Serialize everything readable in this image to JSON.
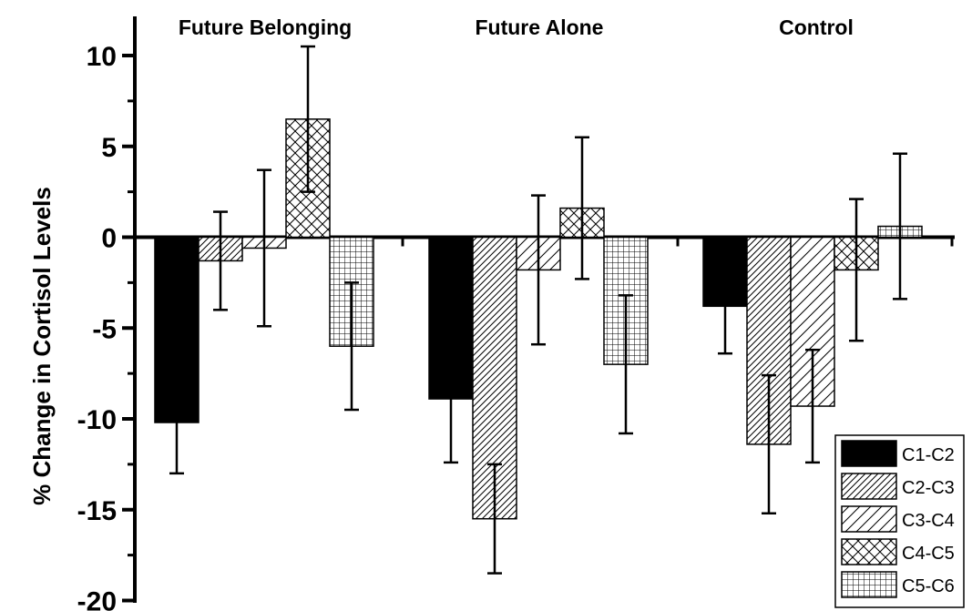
{
  "chart_data": {
    "type": "bar",
    "ylabel": "% Change in Cortisol Levels",
    "ylim": [
      -20,
      11
    ],
    "yticks": [
      10,
      5,
      0,
      -5,
      -10,
      -15,
      -20
    ],
    "categories": [
      "Future Belonging",
      "Future Alone",
      "Control"
    ],
    "series": [
      {
        "name": "C1-C2",
        "pattern": "solid",
        "values": [
          -10.2,
          -8.9,
          -3.8
        ],
        "errors": [
          2.8,
          3.5,
          2.6
        ]
      },
      {
        "name": "C2-C3",
        "pattern": "diag-dense",
        "values": [
          -1.3,
          -15.5,
          -11.4
        ],
        "errors": [
          2.7,
          3.0,
          3.8
        ]
      },
      {
        "name": "C3-C4",
        "pattern": "diag-sparse",
        "values": [
          -0.6,
          -1.8,
          -9.3
        ],
        "errors": [
          4.3,
          4.1,
          3.1
        ]
      },
      {
        "name": "C4-C5",
        "pattern": "crosshatch",
        "values": [
          6.5,
          1.6,
          -1.8
        ],
        "errors": [
          4.0,
          3.9,
          3.9
        ]
      },
      {
        "name": "C5-C6",
        "pattern": "grid",
        "values": [
          -6.0,
          -7.0,
          0.6
        ],
        "errors": [
          3.5,
          3.8,
          4.0
        ]
      }
    ],
    "legend_position": "bottom-right",
    "grid": false
  }
}
